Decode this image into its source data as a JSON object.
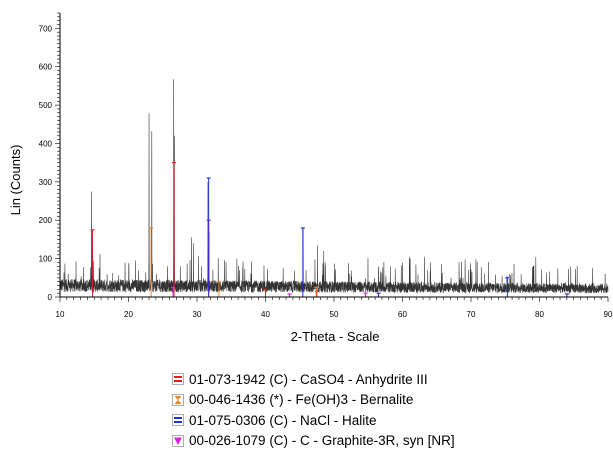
{
  "chart_data": {
    "type": "line",
    "xlabel": "2-Theta - Scale",
    "ylabel": "Lin (Counts)",
    "xlim": [
      10,
      90
    ],
    "ylim": [
      0,
      740
    ],
    "x_ticks": [
      10,
      20,
      30,
      40,
      50,
      60,
      70,
      80,
      90
    ],
    "y_ticks": [
      0,
      100,
      200,
      300,
      400,
      500,
      600,
      700
    ],
    "grid": false,
    "legend_position": "bottom",
    "background_noise": {
      "x_range": [
        10,
        90
      ],
      "mean_counts": 28,
      "color": "#333333"
    },
    "peaks": [
      {
        "x": 14.6,
        "y": 275
      },
      {
        "x": 14.75,
        "y": 175
      },
      {
        "x": 19.5,
        "y": 90
      },
      {
        "x": 21.0,
        "y": 95
      },
      {
        "x": 23.0,
        "y": 478
      },
      {
        "x": 23.4,
        "y": 432
      },
      {
        "x": 25.7,
        "y": 80
      },
      {
        "x": 26.6,
        "y": 567
      },
      {
        "x": 26.7,
        "y": 420
      },
      {
        "x": 29.2,
        "y": 155
      },
      {
        "x": 29.5,
        "y": 140
      },
      {
        "x": 31.6,
        "y": 300
      },
      {
        "x": 31.75,
        "y": 240
      },
      {
        "x": 36.2,
        "y": 70
      },
      {
        "x": 45.5,
        "y": 180
      },
      {
        "x": 47.6,
        "y": 135
      },
      {
        "x": 48.5,
        "y": 120
      },
      {
        "x": 56.5,
        "y": 70
      },
      {
        "x": 63.2,
        "y": 105
      },
      {
        "x": 75.3,
        "y": 50
      }
    ],
    "series": [
      {
        "name": "01-073-1942 (C) - CaSO4 - Anhydrite III",
        "color": "#e02020",
        "marker": "double-bar",
        "sticks": [
          {
            "x": 14.75,
            "y": 175
          },
          {
            "x": 26.65,
            "y": 350
          },
          {
            "x": 31.7,
            "y": 200
          },
          {
            "x": 40.0,
            "y": 20
          },
          {
            "x": 47.5,
            "y": 15
          }
        ]
      },
      {
        "name": "00-046-1436 (*) - Fe(OH)3 - Bernalite",
        "color": "#f08020",
        "marker": "hourglass",
        "sticks": [
          {
            "x": 23.3,
            "y": 180
          },
          {
            "x": 33.2,
            "y": 40
          },
          {
            "x": 47.4,
            "y": 25
          }
        ]
      },
      {
        "name": "01-075-0306 (C) - NaCl - Halite",
        "color": "#2030e0",
        "marker": "double-bar",
        "sticks": [
          {
            "x": 31.7,
            "y": 310
          },
          {
            "x": 45.45,
            "y": 180
          },
          {
            "x": 56.5,
            "y": 10
          },
          {
            "x": 75.3,
            "y": 50
          },
          {
            "x": 84.0,
            "y": 8
          }
        ]
      },
      {
        "name": "00-026-1079 (C) - C - Graphite-3R, syn [NR]",
        "color": "#e020e0",
        "marker": "triangle-down",
        "sticks": [
          {
            "x": 26.5,
            "y": 25
          },
          {
            "x": 43.5,
            "y": 8
          },
          {
            "x": 54.6,
            "y": 10
          }
        ]
      }
    ]
  }
}
